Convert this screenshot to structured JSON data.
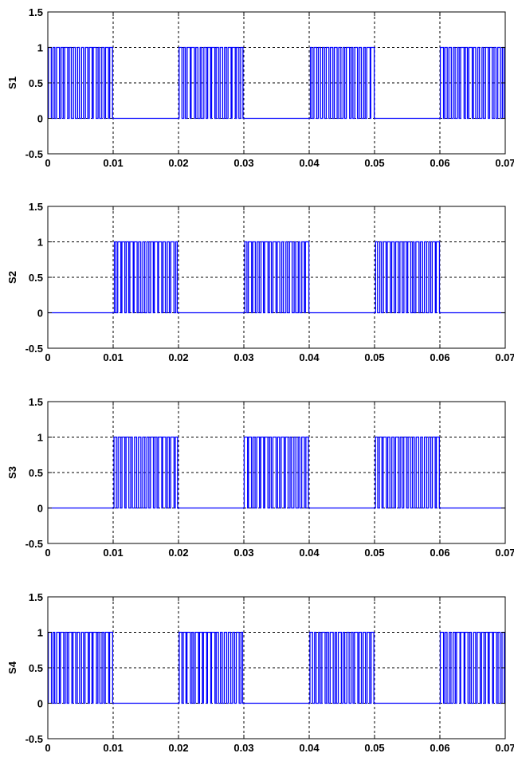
{
  "chart_data": [
    {
      "type": "line",
      "ylabel": "S1",
      "xlim": [
        0,
        0.07
      ],
      "ylim": [
        -0.5,
        1.5
      ],
      "xticks": [
        "0",
        "0.01",
        "0.02",
        "0.03",
        "0.04",
        "0.05",
        "0.06",
        "0.07"
      ],
      "yticks": [
        "-0.5",
        "0",
        "0.5",
        "1",
        "1.5"
      ],
      "grid": true,
      "series": [
        {
          "color": "#0000ff",
          "waveform": "PWM pulse train between 0 and 1",
          "switching_intervals": [
            [
              0,
              0.01
            ],
            [
              0.02,
              0.03
            ],
            [
              0.04,
              0.05
            ],
            [
              0.06,
              0.07
            ]
          ],
          "idle_value": 0,
          "high_value": 1
        }
      ]
    },
    {
      "type": "line",
      "ylabel": "S2",
      "xlim": [
        0,
        0.07
      ],
      "ylim": [
        -0.5,
        1.5
      ],
      "xticks": [
        "0",
        "0.01",
        "0.02",
        "0.03",
        "0.04",
        "0.05",
        "0.06",
        "0.07"
      ],
      "yticks": [
        "-0.5",
        "0",
        "0.5",
        "1",
        "1.5"
      ],
      "grid": true,
      "series": [
        {
          "color": "#0000ff",
          "waveform": "PWM pulse train between 0 and 1",
          "switching_intervals": [
            [
              0.01,
              0.02
            ],
            [
              0.03,
              0.04
            ],
            [
              0.05,
              0.06
            ]
          ],
          "idle_value": 0,
          "high_value": 1
        }
      ]
    },
    {
      "type": "line",
      "ylabel": "S3",
      "xlim": [
        0,
        0.07
      ],
      "ylim": [
        -0.5,
        1.5
      ],
      "xticks": [
        "0",
        "0.01",
        "0.02",
        "0.03",
        "0.04",
        "0.05",
        "0.06",
        "0.07"
      ],
      "yticks": [
        "-0.5",
        "0",
        "0.5",
        "1",
        "1.5"
      ],
      "grid": true,
      "series": [
        {
          "color": "#0000ff",
          "waveform": "PWM pulse train between 0 and 1",
          "switching_intervals": [
            [
              0.01,
              0.02
            ],
            [
              0.03,
              0.04
            ],
            [
              0.05,
              0.06
            ]
          ],
          "idle_value": 0,
          "high_value": 1
        }
      ]
    },
    {
      "type": "line",
      "ylabel": "S4",
      "xlim": [
        0,
        0.07
      ],
      "ylim": [
        -0.5,
        1.5
      ],
      "xticks": [
        "0",
        "0.01",
        "0.02",
        "0.03",
        "0.04",
        "0.05",
        "0.06",
        "0.07"
      ],
      "yticks": [
        "-0.5",
        "0",
        "0.5",
        "1",
        "1.5"
      ],
      "grid": true,
      "series": [
        {
          "color": "#0000ff",
          "waveform": "PWM pulse train between 0 and 1",
          "switching_intervals": [
            [
              0,
              0.01
            ],
            [
              0.02,
              0.03
            ],
            [
              0.04,
              0.05
            ],
            [
              0.06,
              0.07
            ]
          ],
          "idle_value": 0,
          "high_value": 1
        }
      ]
    }
  ]
}
